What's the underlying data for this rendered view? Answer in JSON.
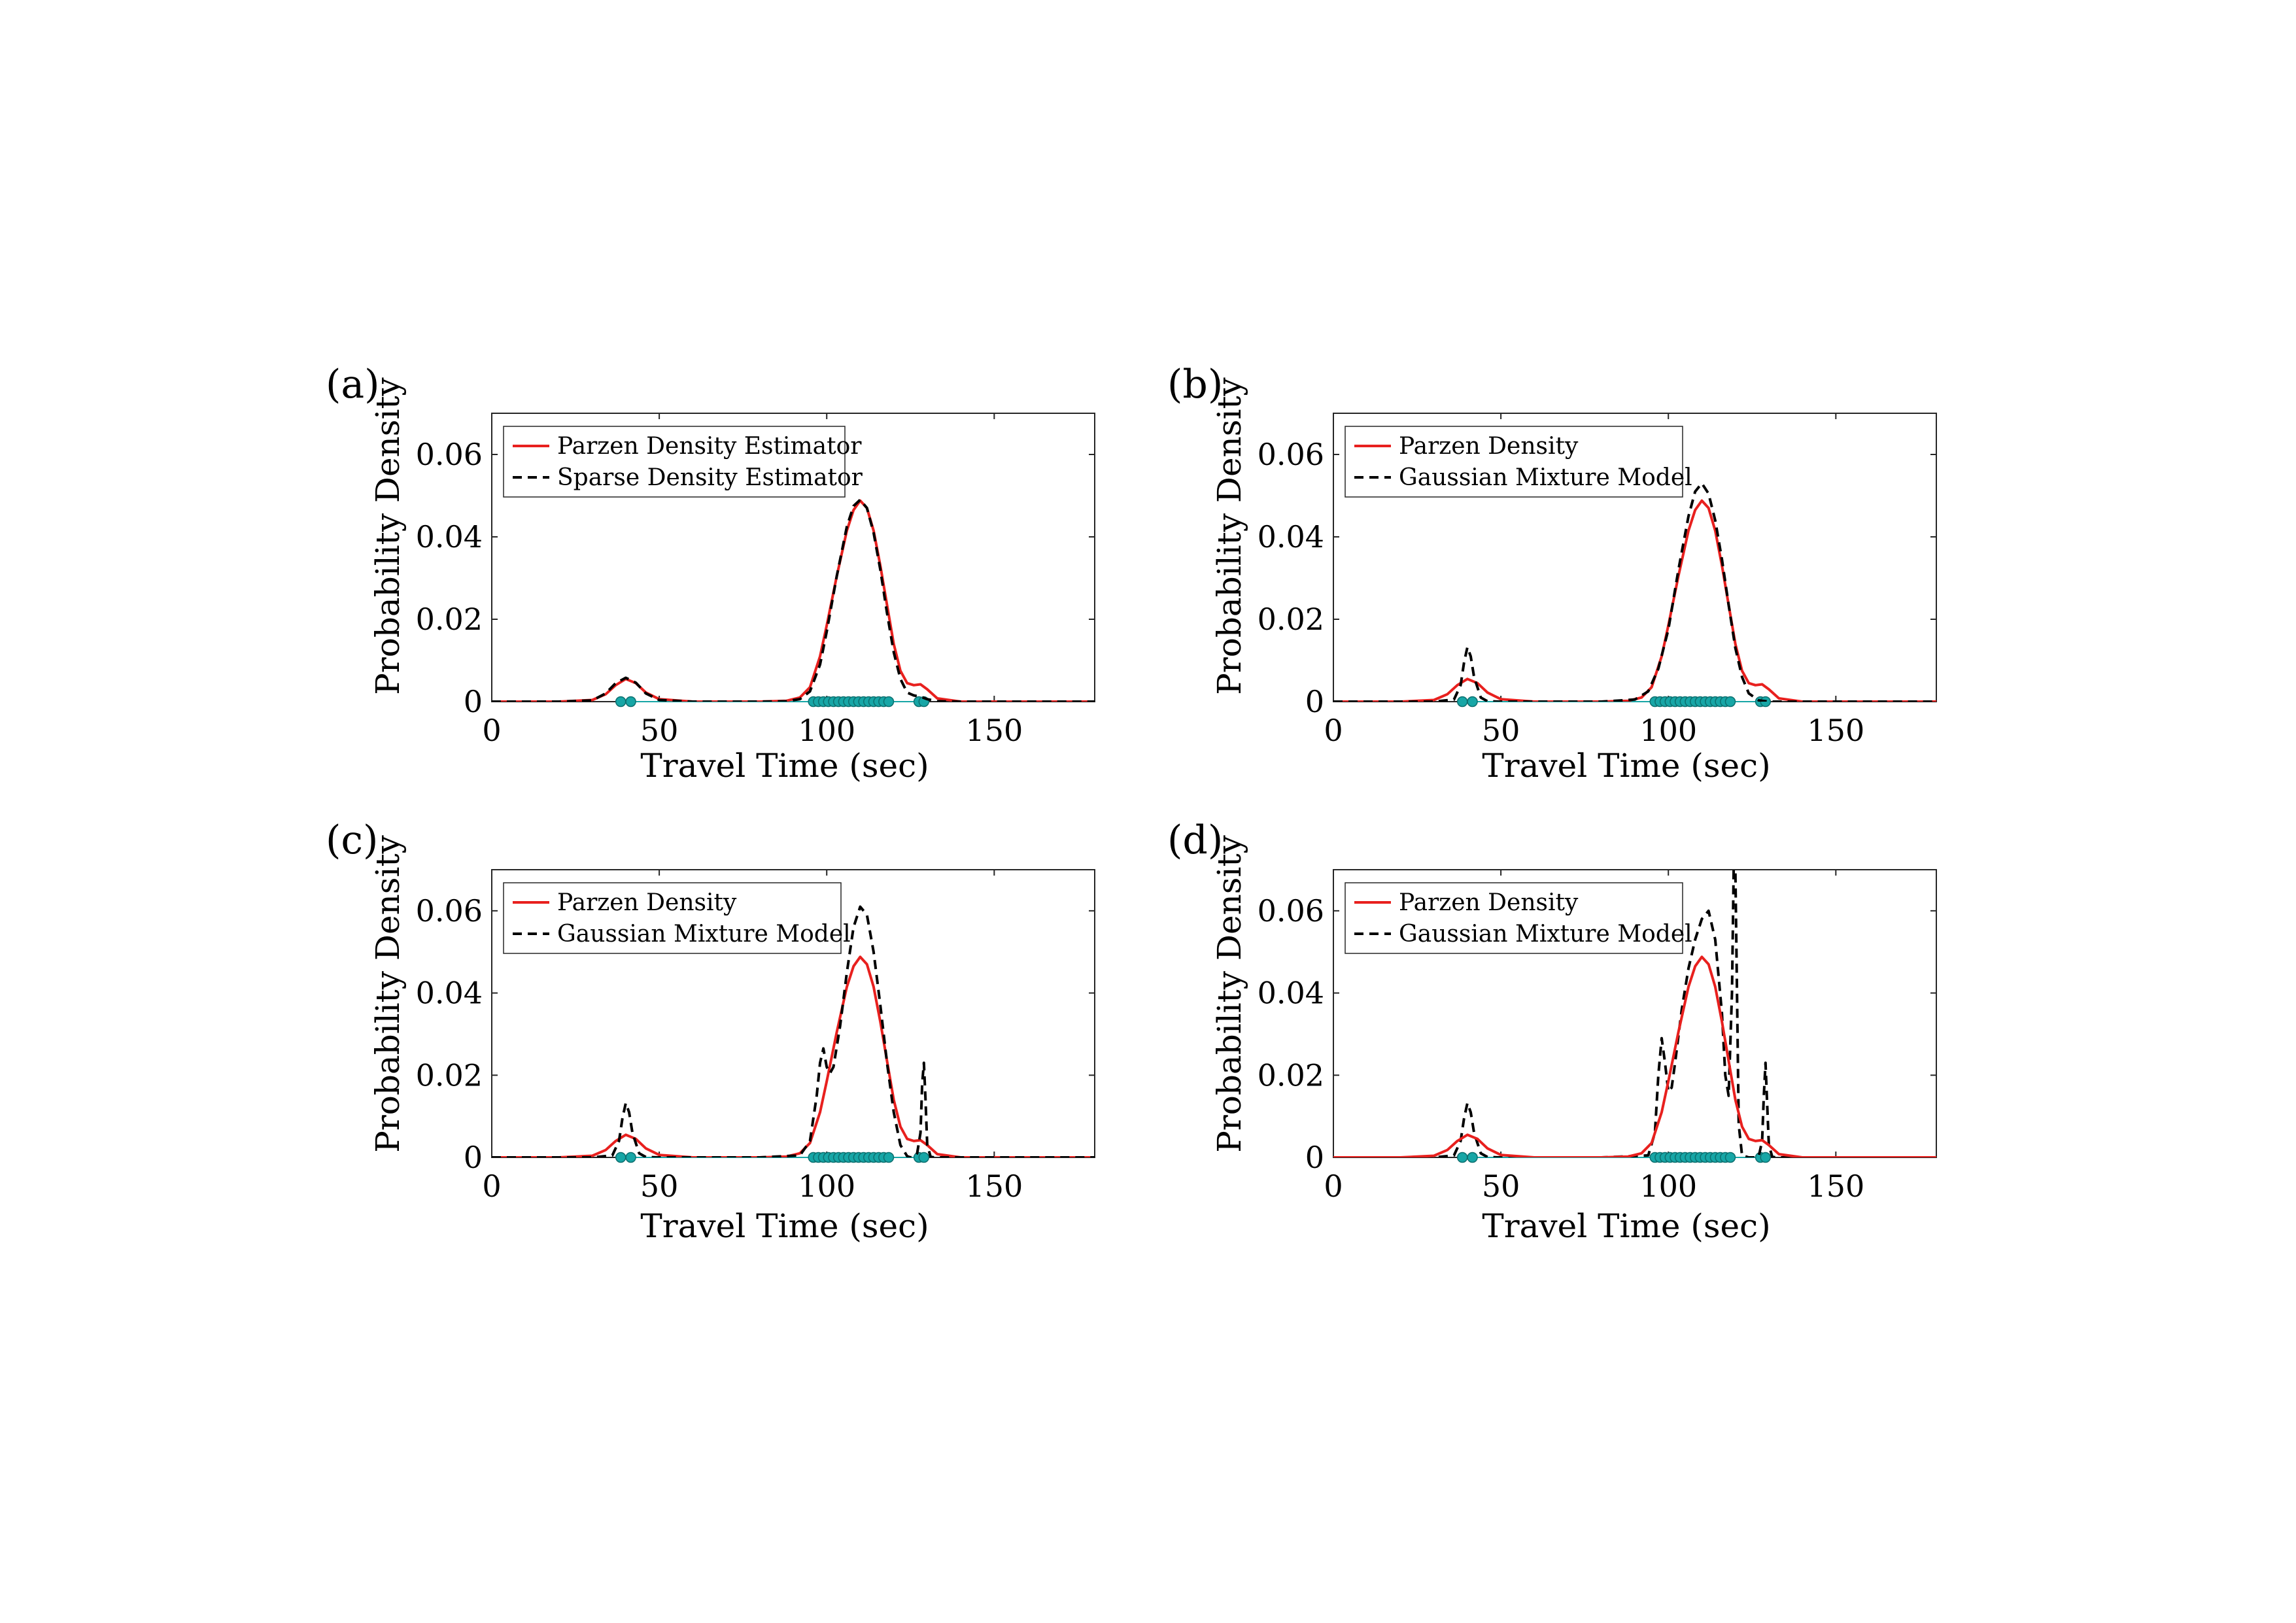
{
  "chart_data": [
    {
      "panel_label": "(a)",
      "type": "line",
      "xlabel": "Travel Time (sec)",
      "ylabel": "Probability Density",
      "xlim": [
        0,
        180
      ],
      "ylim": [
        0,
        0.07
      ],
      "xticks": [
        0,
        50,
        100,
        150
      ],
      "xtick_labels": [
        "0",
        "50",
        "100",
        "150"
      ],
      "yticks": [
        0,
        0.02,
        0.04,
        0.06
      ],
      "ytick_labels": [
        "0",
        "0.02",
        "0.04",
        "0.06"
      ],
      "grid": false,
      "legend": {
        "position": "top-left",
        "entries": [
          {
            "label": "Parzen Density Estimator",
            "color": "#e8201e",
            "dash": "solid"
          },
          {
            "label": "Sparse Density Estimator",
            "color": "#000000",
            "dash": "dashed"
          }
        ]
      },
      "series": [
        {
          "name": "Parzen Density Estimator",
          "color": "#e8201e",
          "dash": "solid",
          "x": [
            0,
            20,
            30,
            34,
            37,
            40,
            43,
            46,
            50,
            60,
            80,
            88,
            92,
            95,
            98,
            100,
            103,
            106,
            108,
            110,
            112,
            114,
            116,
            118,
            120,
            122,
            124,
            126,
            128,
            130,
            133,
            140,
            180
          ],
          "y": [
            0,
            0,
            0.0004,
            0.0018,
            0.004,
            0.0055,
            0.0045,
            0.0022,
            0.0006,
            0,
            0,
            0.0002,
            0.001,
            0.0035,
            0.011,
            0.0185,
            0.0305,
            0.0415,
            0.0465,
            0.0488,
            0.047,
            0.0415,
            0.033,
            0.0235,
            0.014,
            0.0075,
            0.0045,
            0.004,
            0.0042,
            0.003,
            0.0008,
            0,
            0
          ]
        },
        {
          "name": "Sparse Density Estimator",
          "color": "#000000",
          "dash": "dashed",
          "x": [
            0,
            20,
            30,
            34,
            37,
            40,
            43,
            46,
            50,
            60,
            80,
            88,
            92,
            95,
            98,
            100,
            103,
            106,
            108,
            110,
            112,
            114,
            116,
            118,
            120,
            122,
            124,
            126,
            128,
            130,
            133,
            140,
            180
          ],
          "y": [
            0,
            0,
            0.0003,
            0.002,
            0.0045,
            0.0058,
            0.0046,
            0.002,
            0.0004,
            0,
            0,
            0.0001,
            0.0006,
            0.0025,
            0.009,
            0.017,
            0.0305,
            0.0425,
            0.0475,
            0.049,
            0.047,
            0.041,
            0.032,
            0.0215,
            0.012,
            0.0055,
            0.0022,
            0.0015,
            0.0012,
            0.0006,
            0.0001,
            0,
            0
          ]
        }
      ],
      "samples": [
        38.5,
        41.5,
        96,
        97.5,
        99,
        100.5,
        102,
        103.5,
        105,
        106.5,
        108,
        109.5,
        111,
        112.5,
        114,
        115.5,
        117,
        118.5,
        127.5,
        129
      ]
    },
    {
      "panel_label": "(b)",
      "type": "line",
      "xlabel": "Travel Time (sec)",
      "ylabel": "Probability Density",
      "xlim": [
        0,
        180
      ],
      "ylim": [
        0,
        0.07
      ],
      "xticks": [
        0,
        50,
        100,
        150
      ],
      "xtick_labels": [
        "0",
        "50",
        "100",
        "150"
      ],
      "yticks": [
        0,
        0.02,
        0.04,
        0.06
      ],
      "ytick_labels": [
        "0",
        "0.02",
        "0.04",
        "0.06"
      ],
      "grid": false,
      "legend": {
        "position": "top-left",
        "entries": [
          {
            "label": "Parzen Density",
            "color": "#e8201e",
            "dash": "solid"
          },
          {
            "label": "Gaussian Mixture Model",
            "color": "#000000",
            "dash": "dashed"
          }
        ]
      },
      "series": [
        {
          "name": "Parzen Density",
          "color": "#e8201e",
          "dash": "solid",
          "x": [
            0,
            20,
            30,
            34,
            37,
            40,
            43,
            46,
            50,
            60,
            80,
            88,
            92,
            95,
            98,
            100,
            103,
            106,
            108,
            110,
            112,
            114,
            116,
            118,
            120,
            122,
            124,
            126,
            128,
            130,
            133,
            140,
            180
          ],
          "y": [
            0,
            0,
            0.0004,
            0.0018,
            0.004,
            0.0055,
            0.0045,
            0.0022,
            0.0006,
            0,
            0,
            0.0002,
            0.001,
            0.0035,
            0.011,
            0.0185,
            0.0305,
            0.0415,
            0.0465,
            0.0488,
            0.047,
            0.0415,
            0.033,
            0.0235,
            0.014,
            0.0075,
            0.0045,
            0.004,
            0.0042,
            0.003,
            0.0008,
            0,
            0
          ]
        },
        {
          "name": "Gaussian Mixture Model",
          "color": "#000000",
          "dash": "dashed",
          "x": [
            0,
            30,
            36,
            38,
            39,
            40,
            41,
            42,
            44,
            46,
            50,
            80,
            90,
            94,
            97,
            100,
            103,
            106,
            108,
            110,
            112,
            114,
            116,
            118,
            120,
            122,
            124,
            127,
            130,
            140,
            180
          ],
          "y": [
            0,
            0,
            0.0005,
            0.004,
            0.0095,
            0.0132,
            0.011,
            0.006,
            0.001,
            0.0001,
            0,
            0,
            0.0005,
            0.0025,
            0.008,
            0.0175,
            0.032,
            0.045,
            0.051,
            0.053,
            0.0505,
            0.044,
            0.0345,
            0.0235,
            0.013,
            0.006,
            0.002,
            0.0003,
            0,
            0,
            0
          ]
        }
      ],
      "samples": [
        38.5,
        41.5,
        96,
        97.5,
        99,
        100.5,
        102,
        103.5,
        105,
        106.5,
        108,
        109.5,
        111,
        112.5,
        114,
        115.5,
        117,
        118.5,
        127.5,
        129
      ]
    },
    {
      "panel_label": "(c)",
      "type": "line",
      "xlabel": "Travel Time (sec)",
      "ylabel": "Probability Density",
      "xlim": [
        0,
        180
      ],
      "ylim": [
        0,
        0.07
      ],
      "xticks": [
        0,
        50,
        100,
        150
      ],
      "xtick_labels": [
        "0",
        "50",
        "100",
        "150"
      ],
      "yticks": [
        0,
        0.02,
        0.04,
        0.06
      ],
      "ytick_labels": [
        "0",
        "0.02",
        "0.04",
        "0.06"
      ],
      "grid": false,
      "legend": {
        "position": "top-left",
        "entries": [
          {
            "label": "Parzen Density",
            "color": "#e8201e",
            "dash": "solid"
          },
          {
            "label": "Gaussian Mixture Model",
            "color": "#000000",
            "dash": "dashed"
          }
        ]
      },
      "series": [
        {
          "name": "Parzen Density",
          "color": "#e8201e",
          "dash": "solid",
          "x": [
            0,
            20,
            30,
            34,
            37,
            40,
            43,
            46,
            50,
            60,
            80,
            88,
            92,
            95,
            98,
            100,
            103,
            106,
            108,
            110,
            112,
            114,
            116,
            118,
            120,
            122,
            124,
            126,
            128,
            130,
            133,
            140,
            180
          ],
          "y": [
            0,
            0,
            0.0004,
            0.0018,
            0.004,
            0.0055,
            0.0045,
            0.0022,
            0.0006,
            0,
            0,
            0.0002,
            0.001,
            0.0035,
            0.011,
            0.0185,
            0.0305,
            0.0415,
            0.0465,
            0.0488,
            0.047,
            0.0415,
            0.033,
            0.0235,
            0.014,
            0.0075,
            0.0045,
            0.004,
            0.0042,
            0.003,
            0.0008,
            0,
            0
          ]
        },
        {
          "name": "Gaussian Mixture Model",
          "color": "#000000",
          "dash": "dashed",
          "x": [
            0,
            30,
            36,
            38,
            39,
            40,
            41,
            42,
            44,
            46,
            50,
            80,
            92,
            95,
            97,
            98,
            99,
            100,
            101,
            102,
            104,
            106,
            108,
            110,
            112,
            114,
            116,
            118,
            120,
            122,
            124,
            125,
            126,
            127,
            128,
            128.5,
            129,
            129.5,
            130,
            131,
            132,
            140,
            180
          ],
          "y": [
            0,
            0,
            0.0005,
            0.004,
            0.0095,
            0.0132,
            0.011,
            0.006,
            0.001,
            0.0001,
            0,
            0,
            0.0005,
            0.004,
            0.015,
            0.023,
            0.0265,
            0.022,
            0.0205,
            0.022,
            0.032,
            0.045,
            0.056,
            0.061,
            0.059,
            0.05,
            0.037,
            0.023,
            0.011,
            0.003,
            0.0003,
            0,
            0.0002,
            0.001,
            0.006,
            0.018,
            0.023,
            0.014,
            0.003,
            0.0002,
            0,
            0,
            0
          ]
        }
      ],
      "samples": [
        38.5,
        41.5,
        96,
        97.5,
        99,
        100.5,
        102,
        103.5,
        105,
        106.5,
        108,
        109.5,
        111,
        112.5,
        114,
        115.5,
        117,
        118.5,
        127.5,
        129
      ]
    },
    {
      "panel_label": "(d)",
      "type": "line",
      "xlabel": "Travel Time (sec)",
      "ylabel": "Probability Density",
      "xlim": [
        0,
        180
      ],
      "ylim": [
        0,
        0.07
      ],
      "xticks": [
        0,
        50,
        100,
        150
      ],
      "xtick_labels": [
        "0",
        "50",
        "100",
        "150"
      ],
      "yticks": [
        0,
        0.02,
        0.04,
        0.06
      ],
      "ytick_labels": [
        "0",
        "0.02",
        "0.04",
        "0.06"
      ],
      "grid": false,
      "legend": {
        "position": "top-left",
        "entries": [
          {
            "label": "Parzen Density",
            "color": "#e8201e",
            "dash": "solid"
          },
          {
            "label": "Gaussian Mixture Model",
            "color": "#000000",
            "dash": "dashed"
          }
        ]
      },
      "series": [
        {
          "name": "Gaussian Mixture Model",
          "color": "#000000",
          "dash": "dashed",
          "x": [
            0,
            30,
            36,
            38,
            39,
            40,
            41,
            42,
            44,
            46,
            50,
            80,
            94,
            96,
            97,
            98,
            99,
            100,
            101,
            102,
            104,
            106,
            108,
            110,
            112,
            114,
            116,
            117,
            118,
            119,
            119.5,
            120,
            120.5,
            121,
            122,
            124,
            126,
            127,
            128,
            128.5,
            129,
            129.5,
            130,
            131,
            132,
            140,
            180
          ],
          "y": [
            0,
            0,
            0.0005,
            0.004,
            0.0095,
            0.0132,
            0.011,
            0.006,
            0.001,
            0.0001,
            0,
            0,
            0.0005,
            0.006,
            0.02,
            0.029,
            0.023,
            0.016,
            0.017,
            0.023,
            0.036,
            0.046,
            0.053,
            0.058,
            0.06,
            0.053,
            0.035,
            0.02,
            0.015,
            0.04,
            0.07,
            0.07,
            0.04,
            0.008,
            0.0005,
            0,
            0,
            0.0003,
            0.004,
            0.015,
            0.023,
            0.013,
            0.003,
            0.0002,
            0,
            0,
            0
          ]
        },
        {
          "name": "Parzen Density",
          "color": "#e8201e",
          "dash": "solid",
          "x": [
            0,
            20,
            30,
            34,
            37,
            40,
            43,
            46,
            50,
            60,
            80,
            88,
            92,
            95,
            98,
            100,
            103,
            106,
            108,
            110,
            112,
            114,
            116,
            118,
            120,
            122,
            124,
            126,
            128,
            130,
            133,
            140,
            180
          ],
          "y": [
            0,
            0,
            0.0004,
            0.0018,
            0.004,
            0.0055,
            0.0045,
            0.0022,
            0.0006,
            0,
            0,
            0.0002,
            0.001,
            0.0035,
            0.011,
            0.0185,
            0.0305,
            0.0415,
            0.0465,
            0.0488,
            0.047,
            0.0415,
            0.033,
            0.0235,
            0.014,
            0.0075,
            0.0045,
            0.004,
            0.0042,
            0.003,
            0.0008,
            0,
            0
          ]
        }
      ],
      "samples": [
        38.5,
        41.5,
        96,
        97.5,
        99,
        100.5,
        102,
        103.5,
        105,
        106.5,
        108,
        109.5,
        111,
        112.5,
        114,
        115.5,
        117,
        118.5,
        127.5,
        129
      ]
    }
  ],
  "colors": {
    "parzen": "#e8201e",
    "model": "#000000",
    "samples_fill": "#17a6a6",
    "samples_edge": "#0d6f6f"
  }
}
